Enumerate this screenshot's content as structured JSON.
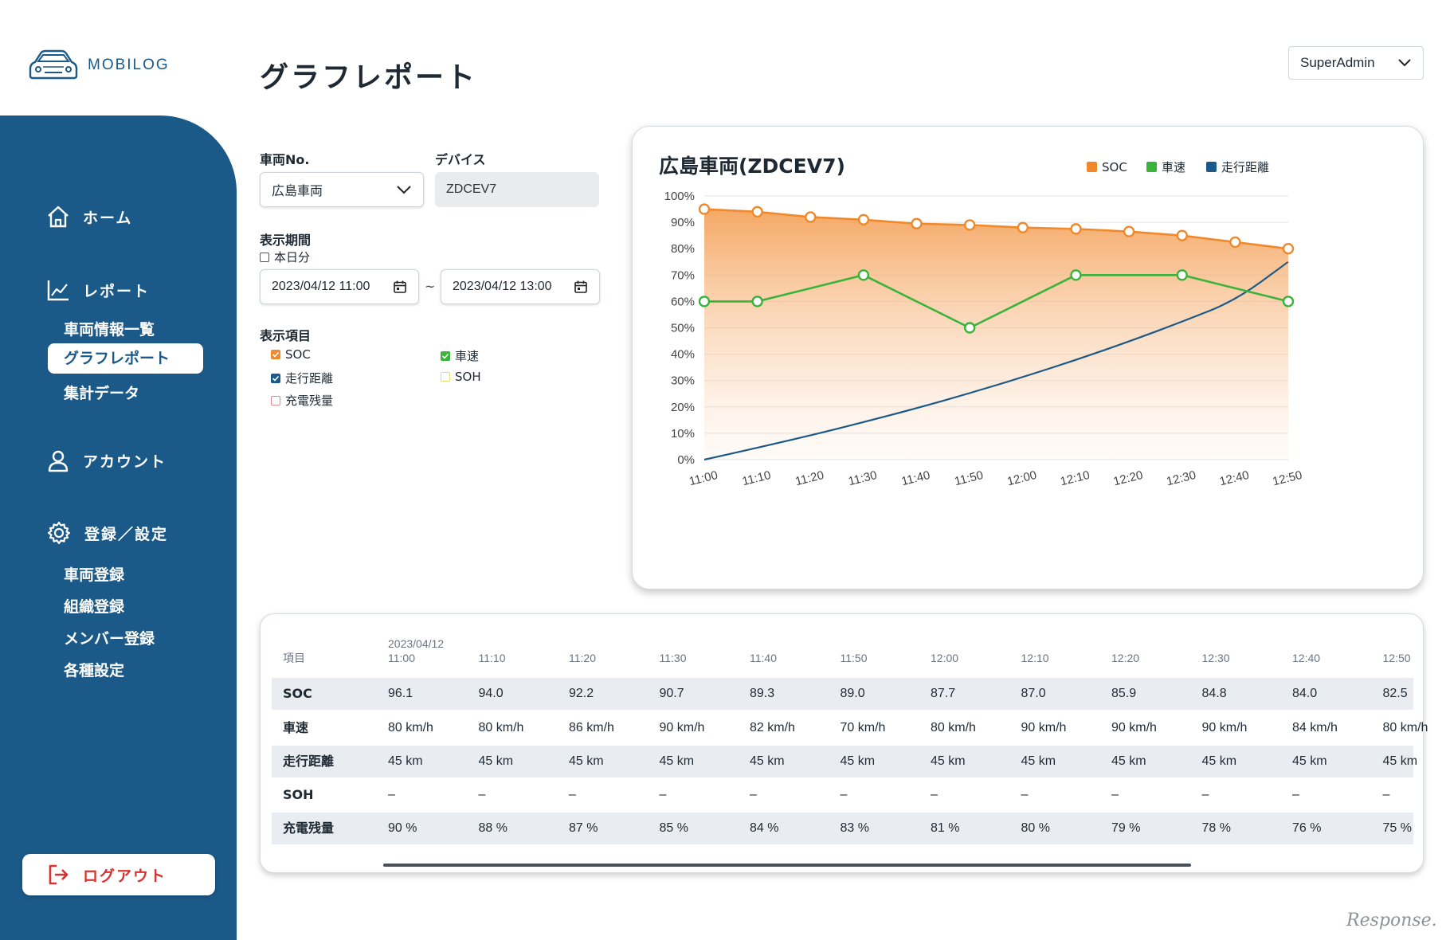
{
  "brand": {
    "name": "MOBILOG"
  },
  "header": {
    "title": "グラフレポート",
    "user": "SuperAdmin"
  },
  "sidebar": {
    "home": "ホーム",
    "report": "レポート",
    "report_items": [
      "車両情報一覧",
      "グラフレポート",
      "集計データ"
    ],
    "active_item": "グラフレポート",
    "account": "アカウント",
    "settings": "登録／設定",
    "settings_items": [
      "車両登録",
      "組織登録",
      "メンバー登録",
      "各種設定"
    ],
    "logout": "ログアウト"
  },
  "filters": {
    "vehicle_label": "車両No.",
    "vehicle_value": "広島車両",
    "device_label": "デバイス",
    "device_value": "ZDCEV7",
    "period_label": "表示期間",
    "today_label": "本日分",
    "today_checked": false,
    "date_from": "2023/04/12 11:00",
    "date_sep": "~",
    "date_to": "2023/04/12 13:00",
    "items_label": "表示項目",
    "items": [
      {
        "label": "SOC",
        "checked": true,
        "color": "#f0892b"
      },
      {
        "label": "車速",
        "checked": true,
        "color": "#3ab33a"
      },
      {
        "label": "走行距離",
        "checked": true,
        "color": "#1b5a88"
      },
      {
        "label": "SOH",
        "checked": false,
        "color": "#e8dc6a"
      },
      {
        "label": "充電残量",
        "checked": false,
        "color": "#e08a8a"
      }
    ]
  },
  "chart_data": {
    "type": "line",
    "title": "広島車両(ZDCEV7)",
    "x": [
      "11:00",
      "11:10",
      "11:20",
      "11:30",
      "11:40",
      "11:50",
      "12:00",
      "12:10",
      "12:20",
      "12:30",
      "12:40",
      "12:50"
    ],
    "y_ticks": [
      "100%",
      "90%",
      "80%",
      "70%",
      "60%",
      "50%",
      "40%",
      "30%",
      "20%",
      "10%",
      "0%"
    ],
    "ylim": [
      0,
      100
    ],
    "grid": true,
    "legend_position": "top-right",
    "series": [
      {
        "name": "SOC",
        "color": "#f0892b",
        "area": true,
        "markers": true,
        "values": [
          95,
          94,
          92,
          91,
          89.5,
          89,
          88,
          87.5,
          86.5,
          85,
          82.5,
          80
        ]
      },
      {
        "name": "車速",
        "color": "#3ab33a",
        "area": false,
        "markers": true,
        "values": [
          60,
          60,
          null,
          70,
          null,
          50,
          null,
          70,
          null,
          70,
          null,
          60
        ]
      },
      {
        "name": "走行距離",
        "color": "#1b5a88",
        "area": false,
        "markers": false,
        "values": [
          0,
          4.5,
          9.2,
          14.2,
          19.5,
          25.2,
          31.3,
          37.8,
          44.8,
          52.3,
          60.3,
          75
        ]
      }
    ]
  },
  "table": {
    "item_header": "項目",
    "date_header": "2023/04/12",
    "times": [
      "11:00",
      "11:10",
      "11:20",
      "11:30",
      "11:40",
      "11:50",
      "12:00",
      "12:10",
      "12:20",
      "12:30",
      "12:40",
      "12:50"
    ],
    "rows": [
      {
        "label": "SOC",
        "values": [
          "96.1",
          "94.0",
          "92.2",
          "90.7",
          "89.3",
          "89.0",
          "87.7",
          "87.0",
          "85.9",
          "84.8",
          "84.0",
          "82.5"
        ]
      },
      {
        "label": "車速",
        "values": [
          "80 km/h",
          "80 km/h",
          "86 km/h",
          "90 km/h",
          "82 km/h",
          "70 km/h",
          "80 km/h",
          "90 km/h",
          "90 km/h",
          "90 km/h",
          "84 km/h",
          "80 km/h"
        ]
      },
      {
        "label": "走行距離",
        "values": [
          "45 km",
          "45 km",
          "45 km",
          "45 km",
          "45 km",
          "45 km",
          "45 km",
          "45 km",
          "45 km",
          "45 km",
          "45 km",
          "45 km"
        ]
      },
      {
        "label": "SOH",
        "values": [
          "–",
          "–",
          "–",
          "–",
          "–",
          "–",
          "–",
          "–",
          "–",
          "–",
          "–",
          "–"
        ]
      },
      {
        "label": "充電残量",
        "values": [
          "90 %",
          "88 %",
          "87 %",
          "85 %",
          "84 %",
          "83 %",
          "81 %",
          "80 %",
          "79 %",
          "78 %",
          "76 %",
          "75 %"
        ]
      }
    ]
  },
  "watermark": "Response."
}
